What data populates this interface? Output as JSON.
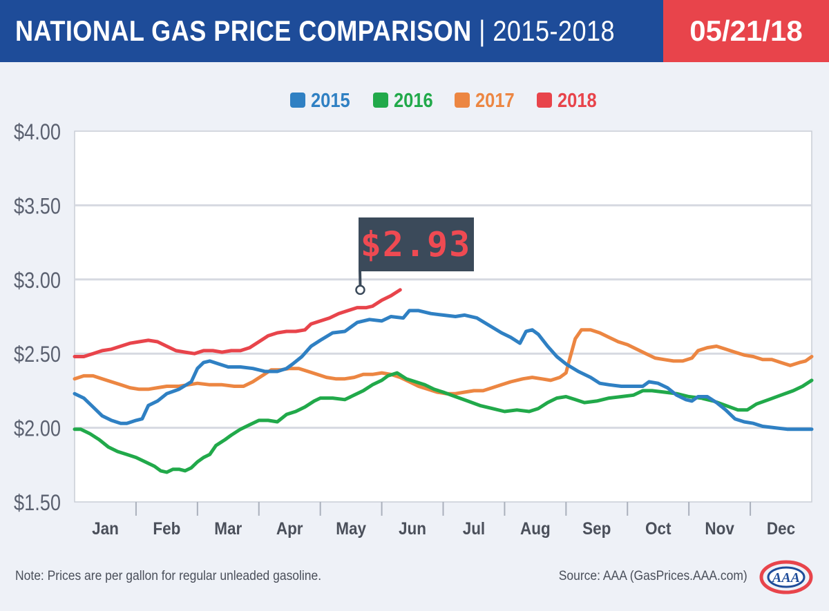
{
  "header": {
    "title_bold": "NATIONAL GAS PRICE COMPARISON",
    "title_light": " | 2015-2018",
    "date": "05/21/18",
    "bg_color": "#1e4c99",
    "date_bg_color": "#e8444b"
  },
  "callout": {
    "label": "$2.93",
    "month": 4.65,
    "value": 2.93
  },
  "note": "Note: Prices are per gallon for regular unleaded gasoline.",
  "source": "Source: AAA (GasPrices.AAA.com)",
  "logo": {
    "text": "AAA",
    "icon": "aaa-logo-icon"
  },
  "chart_data": {
    "type": "line",
    "title": "",
    "xlabel": "",
    "ylabel": "",
    "x_unit": "month (0 = start of Jan, 12 = end of Dec)",
    "categories": [
      "Jan",
      "Feb",
      "Mar",
      "Apr",
      "May",
      "Jun",
      "Jul",
      "Aug",
      "Sep",
      "Oct",
      "Nov",
      "Dec"
    ],
    "yticks": [
      "$4.00",
      "$3.50",
      "$3.00",
      "$2.50",
      "$2.00",
      "$1.50"
    ],
    "ylim": [
      1.5,
      4.0
    ],
    "xlim": [
      0,
      12
    ],
    "grid": true,
    "legend": "top-center",
    "series": [
      {
        "name": "2015",
        "color": "#2f80c3",
        "points": [
          [
            0,
            2.23
          ],
          [
            0.15,
            2.2
          ],
          [
            0.3,
            2.14
          ],
          [
            0.45,
            2.08
          ],
          [
            0.6,
            2.05
          ],
          [
            0.75,
            2.03
          ],
          [
            0.85,
            2.03
          ],
          [
            1.0,
            2.05
          ],
          [
            1.1,
            2.06
          ],
          [
            1.2,
            2.15
          ],
          [
            1.35,
            2.18
          ],
          [
            1.5,
            2.23
          ],
          [
            1.7,
            2.26
          ],
          [
            1.9,
            2.31
          ],
          [
            2.0,
            2.4
          ],
          [
            2.1,
            2.44
          ],
          [
            2.2,
            2.45
          ],
          [
            2.35,
            2.43
          ],
          [
            2.5,
            2.41
          ],
          [
            2.7,
            2.41
          ],
          [
            2.9,
            2.4
          ],
          [
            3.1,
            2.38
          ],
          [
            3.3,
            2.38
          ],
          [
            3.45,
            2.4
          ],
          [
            3.55,
            2.43
          ],
          [
            3.7,
            2.48
          ],
          [
            3.85,
            2.55
          ],
          [
            4.0,
            2.59
          ],
          [
            4.2,
            2.64
          ],
          [
            4.4,
            2.65
          ],
          [
            4.6,
            2.71
          ],
          [
            4.8,
            2.73
          ],
          [
            5.0,
            2.72
          ],
          [
            5.15,
            2.75
          ],
          [
            5.35,
            2.74
          ],
          [
            5.45,
            2.79
          ],
          [
            5.6,
            2.79
          ],
          [
            5.8,
            2.77
          ],
          [
            6.0,
            2.76
          ],
          [
            6.2,
            2.75
          ],
          [
            6.35,
            2.76
          ],
          [
            6.55,
            2.74
          ],
          [
            6.75,
            2.69
          ],
          [
            6.95,
            2.64
          ],
          [
            7.1,
            2.61
          ],
          [
            7.25,
            2.57
          ],
          [
            7.35,
            2.65
          ],
          [
            7.45,
            2.66
          ],
          [
            7.55,
            2.63
          ],
          [
            7.7,
            2.55
          ],
          [
            7.85,
            2.48
          ],
          [
            8.0,
            2.43
          ],
          [
            8.2,
            2.38
          ],
          [
            8.4,
            2.34
          ],
          [
            8.55,
            2.3
          ],
          [
            8.7,
            2.29
          ],
          [
            8.9,
            2.28
          ],
          [
            9.1,
            2.28
          ],
          [
            9.25,
            2.28
          ],
          [
            9.35,
            2.31
          ],
          [
            9.5,
            2.3
          ],
          [
            9.65,
            2.27
          ],
          [
            9.8,
            2.22
          ],
          [
            9.95,
            2.19
          ],
          [
            10.05,
            2.18
          ],
          [
            10.15,
            2.21
          ],
          [
            10.3,
            2.21
          ],
          [
            10.45,
            2.17
          ],
          [
            10.6,
            2.12
          ],
          [
            10.75,
            2.06
          ],
          [
            10.9,
            2.04
          ],
          [
            11.05,
            2.03
          ],
          [
            11.2,
            2.01
          ],
          [
            11.4,
            2.0
          ],
          [
            11.6,
            1.99
          ],
          [
            11.8,
            1.99
          ],
          [
            12.0,
            1.99
          ]
        ]
      },
      {
        "name": "2016",
        "color": "#21a94a",
        "points": [
          [
            0,
            1.99
          ],
          [
            0.1,
            1.99
          ],
          [
            0.25,
            1.96
          ],
          [
            0.4,
            1.92
          ],
          [
            0.55,
            1.87
          ],
          [
            0.7,
            1.84
          ],
          [
            0.85,
            1.82
          ],
          [
            1.0,
            1.8
          ],
          [
            1.15,
            1.77
          ],
          [
            1.3,
            1.74
          ],
          [
            1.4,
            1.71
          ],
          [
            1.5,
            1.7
          ],
          [
            1.6,
            1.72
          ],
          [
            1.7,
            1.72
          ],
          [
            1.8,
            1.71
          ],
          [
            1.9,
            1.73
          ],
          [
            2.0,
            1.77
          ],
          [
            2.1,
            1.8
          ],
          [
            2.2,
            1.82
          ],
          [
            2.3,
            1.88
          ],
          [
            2.45,
            1.92
          ],
          [
            2.55,
            1.95
          ],
          [
            2.7,
            1.99
          ],
          [
            2.85,
            2.02
          ],
          [
            3.0,
            2.05
          ],
          [
            3.15,
            2.05
          ],
          [
            3.3,
            2.04
          ],
          [
            3.45,
            2.09
          ],
          [
            3.6,
            2.11
          ],
          [
            3.75,
            2.14
          ],
          [
            3.9,
            2.18
          ],
          [
            4.0,
            2.2
          ],
          [
            4.2,
            2.2
          ],
          [
            4.4,
            2.19
          ],
          [
            4.55,
            2.22
          ],
          [
            4.7,
            2.25
          ],
          [
            4.85,
            2.29
          ],
          [
            5.0,
            2.32
          ],
          [
            5.1,
            2.35
          ],
          [
            5.25,
            2.37
          ],
          [
            5.4,
            2.33
          ],
          [
            5.55,
            2.31
          ],
          [
            5.7,
            2.29
          ],
          [
            5.85,
            2.26
          ],
          [
            6.0,
            2.24
          ],
          [
            6.2,
            2.21
          ],
          [
            6.4,
            2.18
          ],
          [
            6.6,
            2.15
          ],
          [
            6.8,
            2.13
          ],
          [
            7.0,
            2.11
          ],
          [
            7.2,
            2.12
          ],
          [
            7.4,
            2.11
          ],
          [
            7.55,
            2.13
          ],
          [
            7.7,
            2.17
          ],
          [
            7.85,
            2.2
          ],
          [
            8.0,
            2.21
          ],
          [
            8.15,
            2.19
          ],
          [
            8.3,
            2.17
          ],
          [
            8.5,
            2.18
          ],
          [
            8.7,
            2.2
          ],
          [
            8.9,
            2.21
          ],
          [
            9.1,
            2.22
          ],
          [
            9.25,
            2.25
          ],
          [
            9.4,
            2.25
          ],
          [
            9.6,
            2.24
          ],
          [
            9.8,
            2.23
          ],
          [
            10.0,
            2.21
          ],
          [
            10.2,
            2.2
          ],
          [
            10.4,
            2.18
          ],
          [
            10.6,
            2.15
          ],
          [
            10.8,
            2.12
          ],
          [
            10.95,
            2.12
          ],
          [
            11.1,
            2.16
          ],
          [
            11.3,
            2.19
          ],
          [
            11.5,
            2.22
          ],
          [
            11.7,
            2.25
          ],
          [
            11.85,
            2.28
          ],
          [
            12.0,
            2.32
          ]
        ]
      },
      {
        "name": "2017",
        "color": "#ec8642",
        "points": [
          [
            0,
            2.33
          ],
          [
            0.15,
            2.35
          ],
          [
            0.3,
            2.35
          ],
          [
            0.45,
            2.33
          ],
          [
            0.6,
            2.31
          ],
          [
            0.75,
            2.29
          ],
          [
            0.9,
            2.27
          ],
          [
            1.05,
            2.26
          ],
          [
            1.2,
            2.26
          ],
          [
            1.35,
            2.27
          ],
          [
            1.5,
            2.28
          ],
          [
            1.7,
            2.28
          ],
          [
            1.85,
            2.29
          ],
          [
            2.0,
            2.3
          ],
          [
            2.2,
            2.29
          ],
          [
            2.4,
            2.29
          ],
          [
            2.6,
            2.28
          ],
          [
            2.75,
            2.28
          ],
          [
            2.9,
            2.31
          ],
          [
            3.05,
            2.35
          ],
          [
            3.2,
            2.39
          ],
          [
            3.35,
            2.39
          ],
          [
            3.5,
            2.4
          ],
          [
            3.65,
            2.4
          ],
          [
            3.8,
            2.38
          ],
          [
            3.95,
            2.36
          ],
          [
            4.1,
            2.34
          ],
          [
            4.25,
            2.33
          ],
          [
            4.4,
            2.33
          ],
          [
            4.55,
            2.34
          ],
          [
            4.7,
            2.36
          ],
          [
            4.85,
            2.36
          ],
          [
            5.0,
            2.37
          ],
          [
            5.15,
            2.36
          ],
          [
            5.3,
            2.34
          ],
          [
            5.45,
            2.31
          ],
          [
            5.6,
            2.28
          ],
          [
            5.75,
            2.26
          ],
          [
            5.9,
            2.24
          ],
          [
            6.05,
            2.23
          ],
          [
            6.2,
            2.23
          ],
          [
            6.35,
            2.24
          ],
          [
            6.5,
            2.25
          ],
          [
            6.65,
            2.25
          ],
          [
            6.8,
            2.27
          ],
          [
            6.95,
            2.29
          ],
          [
            7.1,
            2.31
          ],
          [
            7.3,
            2.33
          ],
          [
            7.45,
            2.34
          ],
          [
            7.6,
            2.33
          ],
          [
            7.75,
            2.32
          ],
          [
            7.9,
            2.34
          ],
          [
            8.0,
            2.37
          ],
          [
            8.05,
            2.45
          ],
          [
            8.15,
            2.6
          ],
          [
            8.25,
            2.66
          ],
          [
            8.4,
            2.66
          ],
          [
            8.55,
            2.64
          ],
          [
            8.7,
            2.61
          ],
          [
            8.85,
            2.58
          ],
          [
            9.0,
            2.56
          ],
          [
            9.15,
            2.53
          ],
          [
            9.3,
            2.5
          ],
          [
            9.45,
            2.47
          ],
          [
            9.6,
            2.46
          ],
          [
            9.75,
            2.45
          ],
          [
            9.9,
            2.45
          ],
          [
            10.05,
            2.47
          ],
          [
            10.15,
            2.52
          ],
          [
            10.3,
            2.54
          ],
          [
            10.45,
            2.55
          ],
          [
            10.6,
            2.53
          ],
          [
            10.75,
            2.51
          ],
          [
            10.9,
            2.49
          ],
          [
            11.05,
            2.48
          ],
          [
            11.2,
            2.46
          ],
          [
            11.35,
            2.46
          ],
          [
            11.5,
            2.44
          ],
          [
            11.65,
            2.42
          ],
          [
            11.8,
            2.44
          ],
          [
            11.9,
            2.45
          ],
          [
            12.0,
            2.48
          ]
        ]
      },
      {
        "name": "2018",
        "color": "#e8444b",
        "points": [
          [
            0,
            2.48
          ],
          [
            0.15,
            2.48
          ],
          [
            0.3,
            2.5
          ],
          [
            0.45,
            2.52
          ],
          [
            0.6,
            2.53
          ],
          [
            0.75,
            2.55
          ],
          [
            0.9,
            2.57
          ],
          [
            1.05,
            2.58
          ],
          [
            1.2,
            2.59
          ],
          [
            1.35,
            2.58
          ],
          [
            1.5,
            2.55
          ],
          [
            1.65,
            2.52
          ],
          [
            1.8,
            2.51
          ],
          [
            1.95,
            2.5
          ],
          [
            2.1,
            2.52
          ],
          [
            2.25,
            2.52
          ],
          [
            2.4,
            2.51
          ],
          [
            2.55,
            2.52
          ],
          [
            2.7,
            2.52
          ],
          [
            2.85,
            2.54
          ],
          [
            3.0,
            2.58
          ],
          [
            3.15,
            2.62
          ],
          [
            3.3,
            2.64
          ],
          [
            3.45,
            2.65
          ],
          [
            3.6,
            2.65
          ],
          [
            3.75,
            2.66
          ],
          [
            3.85,
            2.7
          ],
          [
            4.0,
            2.72
          ],
          [
            4.15,
            2.74
          ],
          [
            4.3,
            2.77
          ],
          [
            4.45,
            2.79
          ],
          [
            4.6,
            2.81
          ],
          [
            4.75,
            2.81
          ],
          [
            4.85,
            2.82
          ],
          [
            5.0,
            2.86
          ],
          [
            5.15,
            2.89
          ],
          [
            5.3,
            2.93
          ]
        ]
      }
    ]
  }
}
